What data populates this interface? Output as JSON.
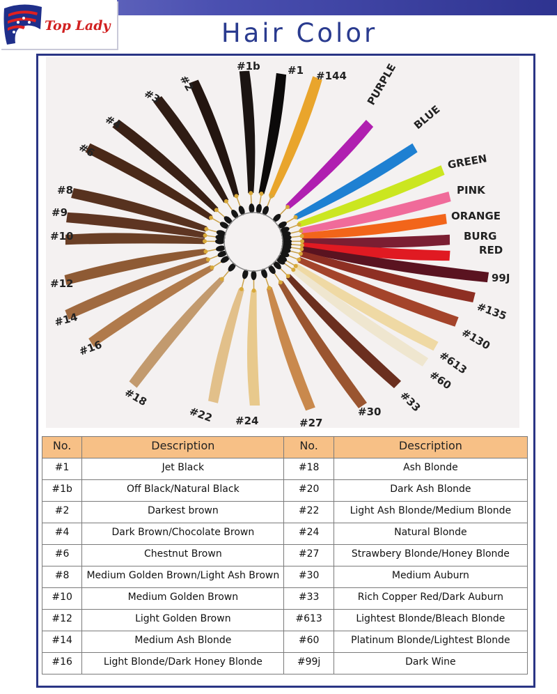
{
  "brand": {
    "name": "Top Lady"
  },
  "title": "Hair Color",
  "swatch_labels": [
    {
      "label": "#1b",
      "color": "#1b1412"
    },
    {
      "label": "#1",
      "color": "#0c0a0a"
    },
    {
      "label": "#144",
      "color": "#e9a52c"
    },
    {
      "label": "PURPLE",
      "color": "#b01fb0"
    },
    {
      "label": "BLUE",
      "color": "#1e80d2"
    },
    {
      "label": "GREEN",
      "color": "#cbe620"
    },
    {
      "label": "PINK",
      "color": "#f06b9a"
    },
    {
      "label": "ORANGE",
      "color": "#f2651a"
    },
    {
      "label": "BURG",
      "color": "#7b1e32"
    },
    {
      "label": "RED",
      "color": "#e01a22"
    },
    {
      "label": "99J",
      "color": "#5a1320"
    },
    {
      "label": "#135",
      "color": "#8e2f23"
    },
    {
      "label": "#130",
      "color": "#a4442b"
    },
    {
      "label": "#613",
      "color": "#efd9a4"
    },
    {
      "label": "#60",
      "color": "#efe6cf"
    },
    {
      "label": "#33",
      "color": "#6b2f1f"
    },
    {
      "label": "#30",
      "color": "#9a5530"
    },
    {
      "label": "#27",
      "color": "#c9894d"
    },
    {
      "label": "#24",
      "color": "#e8c98c"
    },
    {
      "label": "#22",
      "color": "#e2c08a"
    },
    {
      "label": "#18",
      "color": "#c29a6e"
    },
    {
      "label": "#16",
      "color": "#b07a4b"
    },
    {
      "label": "#14",
      "color": "#a06a40"
    },
    {
      "label": "#12",
      "color": "#8e5a34"
    },
    {
      "label": "#10",
      "color": "#6a3f26"
    },
    {
      "label": "#9",
      "color": "#5e3522"
    },
    {
      "label": "#8",
      "color": "#57321f"
    },
    {
      "label": "#6",
      "color": "#4a2918"
    },
    {
      "label": "#4",
      "color": "#3a2116"
    },
    {
      "label": "#3",
      "color": "#2f1c14"
    },
    {
      "label": "#2",
      "color": "#231510"
    }
  ],
  "table": {
    "headers": [
      "No.",
      "Description",
      "No.",
      "Description"
    ],
    "rows": [
      {
        "no1": "#1",
        "desc1": "Jet Black",
        "no2": "#18",
        "desc2": "Ash Blonde"
      },
      {
        "no1": "#1b",
        "desc1": "Off Black/Natural Black",
        "no2": "#20",
        "desc2": "Dark Ash Blonde"
      },
      {
        "no1": "#2",
        "desc1": "Darkest brown",
        "no2": "#22",
        "desc2": "Light Ash Blonde/Medium Blonde"
      },
      {
        "no1": "#4",
        "desc1": "Dark Brown/Chocolate Brown",
        "no2": "#24",
        "desc2": "Natural Blonde"
      },
      {
        "no1": "#6",
        "desc1": "Chestnut Brown",
        "no2": "#27",
        "desc2": "Strawbery Blonde/Honey Blonde"
      },
      {
        "no1": "#8",
        "desc1": "Medium Golden Brown/Light Ash Brown",
        "no2": "#30",
        "desc2": "Medium Auburn"
      },
      {
        "no1": "#10",
        "desc1": "Medium Golden Brown",
        "no2": "#33",
        "desc2": "Rich Copper Red/Dark Auburn"
      },
      {
        "no1": "#12",
        "desc1": "Light Golden Brown",
        "no2": "#613",
        "desc2": "Lightest Blonde/Bleach Blonde"
      },
      {
        "no1": "#14",
        "desc1": "Medium Ash Blonde",
        "no2": "#60",
        "desc2": "Platinum Blonde/Lightest Blonde"
      },
      {
        "no1": "#16",
        "desc1": "Light Blonde/Dark Honey Blonde",
        "no2": "#99j",
        "desc2": "Dark Wine"
      }
    ]
  }
}
